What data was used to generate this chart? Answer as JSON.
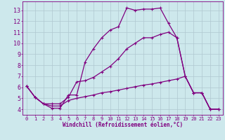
{
  "xlabel": "Windchill (Refroidissement éolien,°C)",
  "bg_color": "#cde8ec",
  "line_color": "#800080",
  "grid_color": "#b0c8d0",
  "xlim": [
    -0.5,
    23.5
  ],
  "ylim": [
    3.5,
    13.8
  ],
  "yticks": [
    4,
    5,
    6,
    7,
    8,
    9,
    10,
    11,
    12,
    13
  ],
  "xticks": [
    0,
    1,
    2,
    3,
    4,
    5,
    6,
    7,
    8,
    9,
    10,
    11,
    12,
    13,
    14,
    15,
    16,
    17,
    18,
    19,
    20,
    21,
    22,
    23
  ],
  "line1_x": [
    0,
    1,
    2,
    3,
    4,
    5,
    6,
    7,
    8,
    9,
    10,
    11,
    12,
    13,
    14,
    15,
    16,
    17,
    18,
    19,
    20,
    21,
    22,
    23
  ],
  "line1_y": [
    6.1,
    5.1,
    4.5,
    4.1,
    4.1,
    5.3,
    5.3,
    8.3,
    9.5,
    10.5,
    11.2,
    11.5,
    13.2,
    13.0,
    13.1,
    13.1,
    13.2,
    11.8,
    10.5,
    7.0,
    5.5,
    5.5,
    4.0,
    4.0
  ],
  "line2_x": [
    0,
    1,
    2,
    3,
    4,
    5,
    6,
    7,
    8,
    9,
    10,
    11,
    12,
    13,
    14,
    15,
    16,
    17,
    18,
    19,
    20,
    21,
    22,
    23
  ],
  "line2_y": [
    6.1,
    5.1,
    4.5,
    4.5,
    4.5,
    5.1,
    6.5,
    6.6,
    6.9,
    7.4,
    7.9,
    8.6,
    9.5,
    10.0,
    10.5,
    10.5,
    10.8,
    11.0,
    10.5,
    7.0,
    5.5,
    5.5,
    4.0,
    4.0
  ],
  "line3_x": [
    0,
    1,
    2,
    3,
    4,
    5,
    6,
    7,
    8,
    9,
    10,
    11,
    12,
    13,
    14,
    15,
    16,
    17,
    18,
    19,
    20,
    21,
    22,
    23
  ],
  "line3_y": [
    6.1,
    5.1,
    4.5,
    4.3,
    4.3,
    4.8,
    5.0,
    5.15,
    5.3,
    5.5,
    5.6,
    5.75,
    5.9,
    6.05,
    6.2,
    6.3,
    6.45,
    6.6,
    6.75,
    7.0,
    5.5,
    5.5,
    4.0,
    4.0
  ]
}
